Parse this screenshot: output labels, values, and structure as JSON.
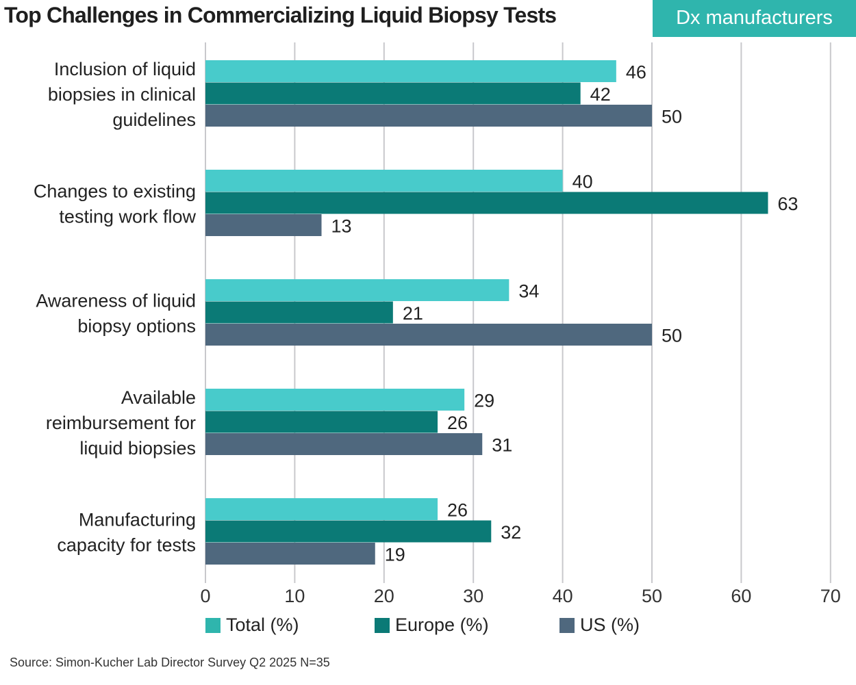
{
  "header": {
    "title": "Top Challenges in Commercializing Liquid Biopsy Tests",
    "badge": "Dx manufacturers"
  },
  "source": "Source: Simon-Kucher Lab Director Survey Q2 2025 N=35",
  "chart_data": {
    "type": "bar",
    "orientation": "horizontal",
    "title": "Top Challenges in Commercializing Liquid Biopsy Tests",
    "xlabel": "",
    "ylabel": "",
    "xlim": [
      0,
      70
    ],
    "xticks": [
      0,
      10,
      20,
      30,
      40,
      50,
      60,
      70
    ],
    "grid": true,
    "legend_position": "bottom",
    "categories": [
      [
        "Inclusion of liquid",
        "biopsies in clinical",
        "guidelines"
      ],
      [
        "Changes to existing",
        "testing work flow"
      ],
      [
        "Awareness of liquid",
        "biopsy options"
      ],
      [
        "Available",
        "reimbursement for",
        "liquid biopsies"
      ],
      [
        "Manufacturing",
        "capacity for tests"
      ]
    ],
    "series": [
      {
        "name": "Total (%)",
        "color": "#48cbcb",
        "legend_color": "#2fb5ad",
        "values": [
          46,
          40,
          34,
          29,
          26
        ]
      },
      {
        "name": "Europe (%)",
        "color": "#0b7a76",
        "legend_color": "#0b7a76",
        "values": [
          42,
          63,
          21,
          26,
          32
        ]
      },
      {
        "name": "US (%)",
        "color": "#4f687e",
        "legend_color": "#4f687e",
        "values": [
          50,
          13,
          50,
          31,
          19
        ]
      }
    ]
  }
}
